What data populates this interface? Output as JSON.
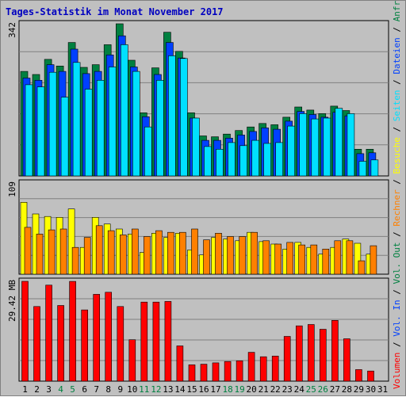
{
  "title": "Tages-Statistik im Monat November 2017",
  "colors": {
    "anfragen": "#008040",
    "dateien": "#0040ff",
    "seiten": "#00e0ff",
    "besuche": "#ffff00",
    "rechner": "#ff8000",
    "volumen": "#ff0000",
    "weekend_tick": "#008040",
    "tick": "#000000",
    "separator": "#000000"
  },
  "chart_data": [
    {
      "type": "bar",
      "panel": "top",
      "ymax_label": "342",
      "ylim": [
        0,
        342
      ],
      "series": [
        {
          "name": "Anfragen",
          "color_key": "anfragen",
          "values": [
            235,
            228,
            262,
            247,
            300,
            244,
            250,
            295,
            342,
            260,
            142,
            243,
            323,
            280,
            142,
            90,
            88,
            94,
            102,
            110,
            118,
            115,
            132,
            155,
            148,
            140,
            157,
            147,
            60,
            60
          ]
        },
        {
          "name": "Dateien",
          "color_key": "dateien",
          "values": [
            220,
            215,
            250,
            235,
            285,
            230,
            235,
            272,
            315,
            245,
            133,
            228,
            300,
            265,
            130,
            80,
            80,
            85,
            92,
            100,
            108,
            105,
            123,
            145,
            138,
            132,
            143,
            135,
            50,
            52
          ]
        },
        {
          "name": "Seiten",
          "color_key": "seiten",
          "values": [
            205,
            200,
            233,
            177,
            255,
            195,
            215,
            245,
            295,
            235,
            110,
            215,
            270,
            264,
            130,
            66,
            60,
            75,
            68,
            80,
            73,
            75,
            112,
            140,
            128,
            130,
            152,
            140,
            33,
            36
          ]
        }
      ]
    },
    {
      "type": "bar",
      "panel": "middle",
      "ymax_label": "109",
      "ylim": [
        0,
        109
      ],
      "series": [
        {
          "name": "Besuche",
          "color_key": "besuche",
          "values": [
            86,
            72,
            69,
            68,
            78,
            32,
            68,
            60,
            54,
            48,
            26,
            49,
            44,
            49,
            29,
            23,
            44,
            42,
            40,
            50,
            39,
            36,
            30,
            38,
            32,
            24,
            32,
            42,
            37,
            24
          ]
        },
        {
          "name": "Rechner",
          "color_key": "rechner",
          "values": [
            56,
            48,
            53,
            54,
            32,
            44,
            58,
            52,
            47,
            54,
            45,
            52,
            50,
            50,
            54,
            41,
            49,
            45,
            45,
            50,
            40,
            36,
            38,
            35,
            35,
            30,
            40,
            40,
            16,
            34
          ]
        }
      ]
    },
    {
      "type": "bar",
      "panel": "bottom",
      "ymax_label": "29.42 MB",
      "ylim": [
        0,
        29.42
      ],
      "series": [
        {
          "name": "Volumen",
          "color_key": "volumen",
          "values": [
            29.42,
            22.0,
            28.3,
            22.3,
            29.4,
            21.0,
            25.6,
            26.2,
            22.0,
            12.2,
            23.3,
            23.3,
            23.5,
            10.4,
            4.8,
            5.0,
            5.4,
            5.8,
            6.0,
            8.5,
            7.2,
            7.4,
            13.2,
            16.3,
            16.7,
            15.3,
            17.9,
            12.5,
            3.4,
            3.0
          ]
        }
      ]
    }
  ],
  "x_ticks": [
    "1",
    "2",
    "3",
    "4",
    "5",
    "6",
    "7",
    "8",
    "9",
    "10",
    "11",
    "12",
    "13",
    "14",
    "15",
    "16",
    "17",
    "18",
    "19",
    "20",
    "21",
    "22",
    "23",
    "24",
    "25",
    "26",
    "27",
    "28",
    "29",
    "30",
    "31"
  ],
  "weekend_days": [
    4,
    5,
    11,
    12,
    18,
    19,
    25,
    26
  ],
  "legend": {
    "items": [
      {
        "label": "Anfragen",
        "color_key": "anfragen"
      },
      {
        "label": "Dateien",
        "color_key": "dateien"
      },
      {
        "label": "Seiten",
        "color_key": "seiten"
      },
      {
        "label": "Besuche",
        "color_key": "besuche"
      },
      {
        "label": "Rechner",
        "color_key": "rechner"
      },
      {
        "label": "Vol. Out",
        "color_key": "anfragen"
      },
      {
        "label": "Vol. In",
        "color_key": "dateien"
      },
      {
        "label": "Volumen",
        "color_key": "volumen"
      }
    ],
    "separator": " / "
  }
}
